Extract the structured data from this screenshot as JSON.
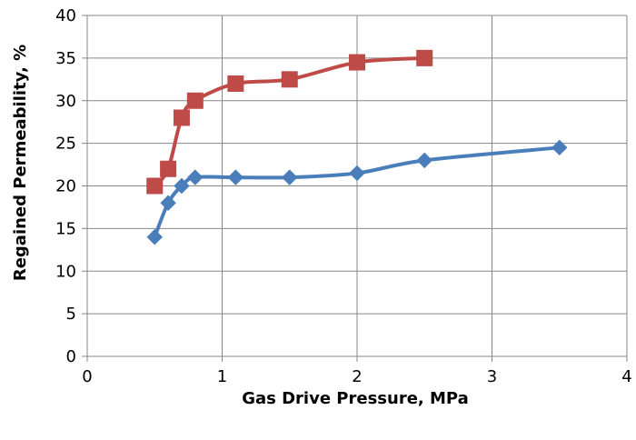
{
  "chart_data": {
    "type": "line",
    "title": "",
    "xlabel": "Gas Drive Pressure, MPa",
    "ylabel": "Regained Permeability, %",
    "xlim": [
      0,
      4
    ],
    "ylim": [
      0,
      40
    ],
    "x_ticks": [
      0,
      1,
      2,
      3,
      4
    ],
    "y_ticks": [
      0,
      5,
      10,
      15,
      20,
      25,
      30,
      35,
      40
    ],
    "grid": true,
    "legend": "none",
    "series": [
      {
        "color": "#4a7ebb",
        "marker": "diamond",
        "x": [
          0.5,
          0.6,
          0.7,
          0.8,
          1.1,
          1.5,
          2.0,
          2.5,
          3.5
        ],
        "y": [
          14,
          18,
          20,
          21,
          21,
          21,
          21.5,
          23,
          24.5
        ]
      },
      {
        "color": "#be4b48",
        "marker": "square",
        "x": [
          0.5,
          0.6,
          0.7,
          0.8,
          1.1,
          1.5,
          2.0,
          2.5
        ],
        "y": [
          20,
          22,
          28,
          30,
          32,
          32.5,
          34.5,
          35
        ]
      }
    ]
  }
}
